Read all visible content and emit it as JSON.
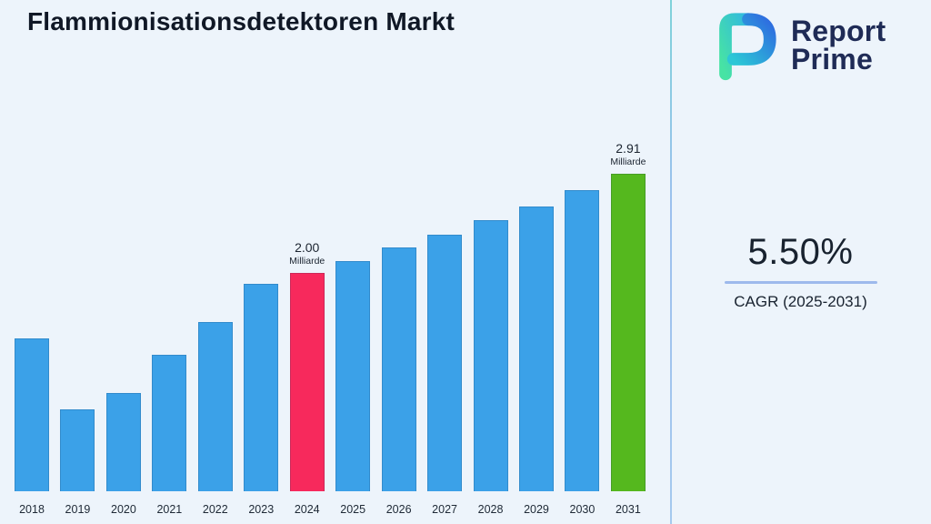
{
  "page": {
    "title": "Flammionisationsdetektoren Markt"
  },
  "chart_data": {
    "type": "bar",
    "title": "Flammionisationsdetektoren Markt",
    "unit": "Milliarde",
    "categories": [
      "2018",
      "2019",
      "2020",
      "2021",
      "2022",
      "2023",
      "2024",
      "2025",
      "2026",
      "2027",
      "2028",
      "2029",
      "2030",
      "2031"
    ],
    "values": [
      1.4,
      0.75,
      0.9,
      1.25,
      1.55,
      1.9,
      2.0,
      2.11,
      2.23,
      2.35,
      2.48,
      2.61,
      2.76,
      2.91
    ],
    "ylim": [
      0,
      3.3
    ],
    "grid": false,
    "legend": false,
    "bar_color": "#3BA1E8",
    "highlights": {
      "2024": {
        "color": "#F7295C",
        "label_value": "2.00",
        "label_unit": "Milliarde"
      },
      "2031": {
        "color": "#55B81E",
        "label_value": "2.91",
        "label_unit": "Milliarde"
      }
    }
  },
  "brand": {
    "logo_icon": "report-prime-mark",
    "name_line1": "Report",
    "name_line2": "Prime",
    "logo_colors": {
      "teal": "#3FD9A9",
      "blue": "#2E6BE0",
      "navy": "#1F2B56"
    }
  },
  "stats": {
    "cagr_value": "5.50%",
    "cagr_label": "CAGR (2025-2031)"
  },
  "theme": {
    "background": "#EDF4FB",
    "divider": "#9CC3EA",
    "underline": "#9DB9EC",
    "text_dark": "#121B2C"
  }
}
